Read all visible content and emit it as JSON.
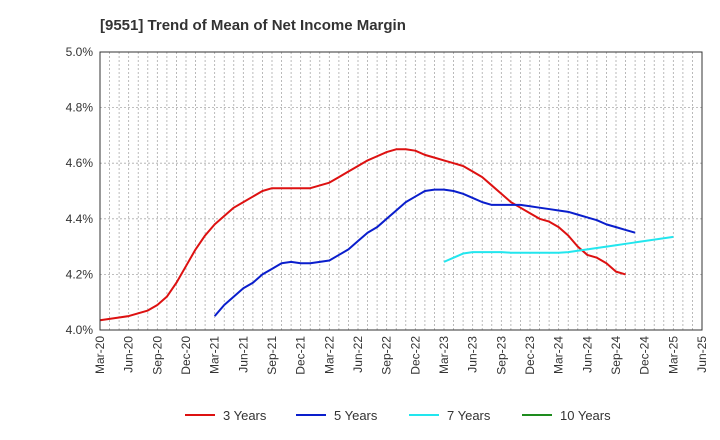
{
  "chart_data": {
    "type": "line",
    "title": "[9551]  Trend of Mean of Net Income Margin",
    "xlabel": "",
    "ylabel": "",
    "ylim": [
      4.0,
      5.0
    ],
    "y_ticks": [
      "4.0%",
      "4.2%",
      "4.4%",
      "4.6%",
      "4.8%",
      "5.0%"
    ],
    "x_ticks": [
      "Mar-20",
      "Jun-20",
      "Sep-20",
      "Dec-20",
      "Mar-21",
      "Jun-21",
      "Sep-21",
      "Dec-21",
      "Mar-22",
      "Jun-22",
      "Sep-22",
      "Dec-22",
      "Mar-23",
      "Jun-23",
      "Sep-23",
      "Dec-23",
      "Mar-24",
      "Jun-24",
      "Sep-24",
      "Dec-24",
      "Mar-25",
      "Jun-25"
    ],
    "grid": true,
    "legend_position": "bottom",
    "series": [
      {
        "name": "3 Years",
        "color": "#dd1111",
        "start_month": "Mar-20",
        "values": [
          4.035,
          4.04,
          4.045,
          4.05,
          4.06,
          4.07,
          4.09,
          4.12,
          4.17,
          4.23,
          4.29,
          4.34,
          4.38,
          4.41,
          4.44,
          4.46,
          4.48,
          4.5,
          4.51,
          4.51,
          4.51,
          4.51,
          4.51,
          4.52,
          4.53,
          4.55,
          4.57,
          4.59,
          4.61,
          4.625,
          4.64,
          4.65,
          4.65,
          4.645,
          4.63,
          4.62,
          4.61,
          4.6,
          4.59,
          4.57,
          4.55,
          4.52,
          4.49,
          4.46,
          4.44,
          4.42,
          4.4,
          4.39,
          4.37,
          4.34,
          4.3,
          4.27,
          4.26,
          4.24,
          4.21,
          4.2
        ]
      },
      {
        "name": "5 Years",
        "color": "#0a1ecc",
        "start_month": "Mar-21",
        "values": [
          4.05,
          4.09,
          4.12,
          4.15,
          4.17,
          4.2,
          4.22,
          4.24,
          4.245,
          4.24,
          4.24,
          4.245,
          4.25,
          4.27,
          4.29,
          4.32,
          4.35,
          4.37,
          4.4,
          4.43,
          4.46,
          4.48,
          4.5,
          4.505,
          4.505,
          4.5,
          4.49,
          4.475,
          4.46,
          4.45,
          4.45,
          4.45,
          4.45,
          4.445,
          4.44,
          4.435,
          4.43,
          4.425,
          4.415,
          4.405,
          4.395,
          4.38,
          4.37,
          4.36,
          4.35
        ]
      },
      {
        "name": "7 Years",
        "color": "#22e6ee",
        "start_month": "Mar-23",
        "values": [
          4.245,
          4.26,
          4.275,
          4.28,
          4.28,
          4.28,
          4.28,
          4.278,
          4.278,
          4.278,
          4.278,
          4.278,
          4.278,
          4.28,
          4.285,
          4.29,
          4.295,
          4.3,
          4.305,
          4.31,
          4.315,
          4.32,
          4.325,
          4.33,
          4.335
        ]
      },
      {
        "name": "10 Years",
        "color": "#1e8c1e",
        "start_month": "Mar-25",
        "values": []
      }
    ]
  }
}
